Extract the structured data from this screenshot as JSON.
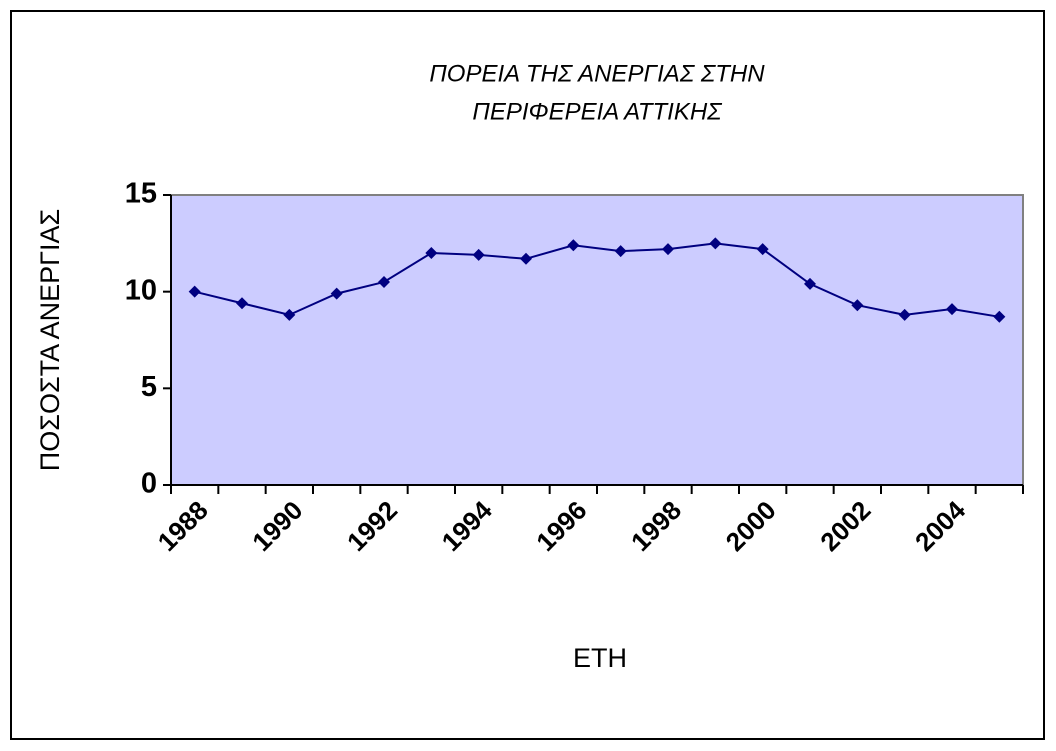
{
  "chart_data": {
    "type": "line",
    "title": [
      "ΠΟΡΕΙΑ ΤΗΣ ΑΝΕΡΓΙΑΣ ΣΤΗΝ",
      "ΠΕΡΙΦΕΡΕΙΑ ΑΤΤΙΚΗΣ"
    ],
    "x_label": "ΕΤΗ",
    "y_label": "ΠΟΣΟΣΤΑ ΑΝΕΡΓΙΑΣ",
    "categories": [
      "1988",
      null,
      "1990",
      null,
      "1992",
      null,
      "1994",
      null,
      "1996",
      null,
      "1998",
      null,
      "2000",
      null,
      "2002",
      null,
      "2004",
      null
    ],
    "series": [
      {
        "name": "ΠΟΣΟΣΤΑ ΑΝΕΡΓΙΑΣ",
        "color": "#000080",
        "values": [
          10.0,
          9.4,
          8.8,
          9.9,
          10.5,
          12.0,
          11.9,
          11.7,
          12.4,
          12.1,
          12.2,
          12.5,
          12.2,
          10.4,
          9.3,
          8.8,
          9.1,
          8.7
        ]
      }
    ],
    "ylim": [
      0,
      15
    ],
    "yticks": [
      0,
      5,
      10,
      15
    ],
    "grid": false,
    "plot_background": "#ccccff"
  }
}
